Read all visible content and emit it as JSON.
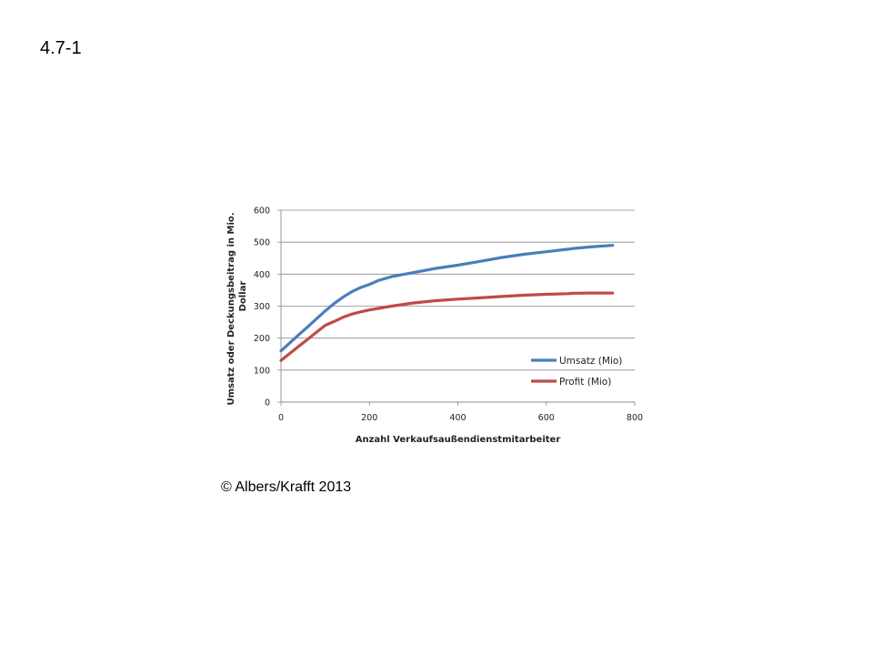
{
  "slide_number": "4.7-1",
  "copyright": "© Albers/Krafft 2013",
  "chart_data": {
    "type": "line",
    "title": "",
    "xlabel": "Anzahl Verkaufsaußendienstmitarbeiter",
    "ylabel_lines": [
      "Umsatz oder Deckungsbeitrag in Mio.",
      "Dollar"
    ],
    "xlim": [
      0,
      800
    ],
    "ylim": [
      0,
      600
    ],
    "xticks": [
      0,
      200,
      400,
      600,
      800
    ],
    "yticks": [
      0,
      100,
      200,
      300,
      400,
      500,
      600
    ],
    "grid": "horizontal",
    "legend_position": "bottom-right",
    "series": [
      {
        "name": "Umsatz (Mio)",
        "color": "#4a7ebb",
        "x": [
          0,
          20,
          40,
          60,
          80,
          100,
          120,
          140,
          160,
          180,
          200,
          220,
          250,
          300,
          350,
          400,
          450,
          500,
          550,
          600,
          650,
          660,
          700,
          750
        ],
        "y": [
          160,
          185,
          210,
          235,
          260,
          285,
          308,
          328,
          345,
          358,
          368,
          380,
          392,
          405,
          418,
          428,
          440,
          452,
          462,
          470,
          478,
          480,
          485,
          490
        ]
      },
      {
        "name": "Profit (Mio)",
        "color": "#be4b48",
        "x": [
          0,
          20,
          40,
          60,
          80,
          100,
          120,
          140,
          160,
          180,
          200,
          220,
          250,
          300,
          350,
          400,
          450,
          500,
          550,
          600,
          650,
          660,
          700,
          750
        ],
        "y": [
          130,
          152,
          174,
          196,
          218,
          240,
          252,
          265,
          275,
          282,
          288,
          293,
          300,
          310,
          317,
          322,
          326,
          330,
          334,
          337,
          339,
          340,
          341,
          341
        ]
      }
    ]
  }
}
